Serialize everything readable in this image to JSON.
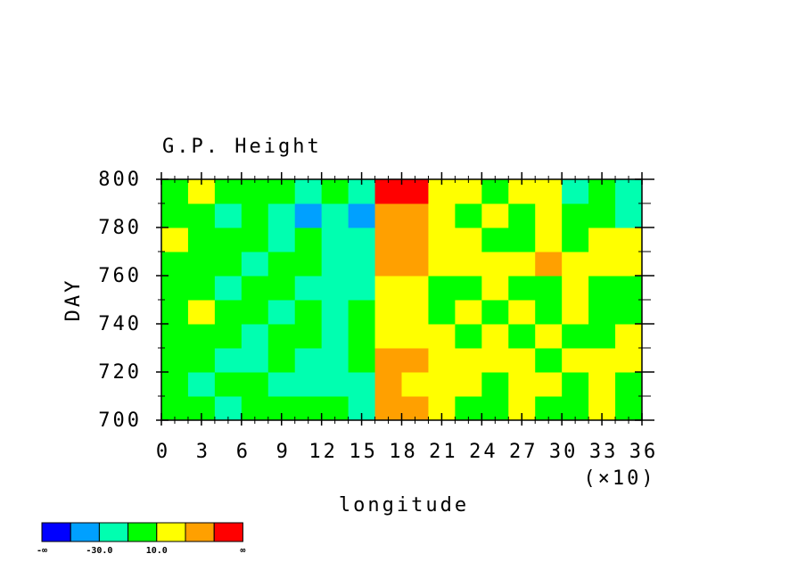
{
  "chart_data": {
    "type": "heatmap",
    "title": "G.P. Height",
    "x_label": "longitude",
    "x_scale_label": "(×10)",
    "y_label": "DAY",
    "xlim": [
      0,
      36
    ],
    "xticks": [
      0,
      3,
      6,
      9,
      12,
      15,
      18,
      21,
      24,
      27,
      30,
      33,
      36
    ],
    "ylim": [
      700,
      800
    ],
    "yticks": [
      700,
      720,
      740,
      760,
      780,
      800
    ],
    "x_edges": [
      0,
      2,
      4,
      6,
      8,
      10,
      12,
      14,
      16,
      18,
      20,
      22,
      24,
      26,
      28,
      30,
      32,
      34,
      36
    ],
    "y_edges": [
      700,
      710,
      720,
      730,
      740,
      750,
      760,
      770,
      780,
      790,
      800
    ],
    "z": [
      [
        0,
        0,
        -20,
        0,
        0,
        0,
        0,
        -20,
        40,
        40,
        20,
        0,
        0,
        20,
        0,
        0,
        20,
        0
      ],
      [
        0,
        -20,
        0,
        0,
        -20,
        -20,
        -20,
        -20,
        40,
        20,
        20,
        20,
        0,
        20,
        20,
        0,
        20,
        0
      ],
      [
        0,
        0,
        -20,
        -20,
        0,
        -20,
        -20,
        0,
        40,
        40,
        20,
        20,
        20,
        20,
        0,
        20,
        20,
        20
      ],
      [
        0,
        0,
        0,
        -20,
        0,
        0,
        -20,
        0,
        20,
        20,
        20,
        0,
        20,
        0,
        20,
        0,
        0,
        20
      ],
      [
        0,
        20,
        0,
        0,
        -20,
        0,
        -20,
        0,
        20,
        20,
        0,
        20,
        0,
        20,
        0,
        20,
        0,
        0
      ],
      [
        0,
        0,
        -20,
        0,
        0,
        -20,
        -20,
        -20,
        20,
        20,
        0,
        0,
        20,
        0,
        0,
        20,
        0,
        0
      ],
      [
        0,
        0,
        0,
        -20,
        0,
        0,
        -20,
        -20,
        40,
        40,
        20,
        20,
        20,
        20,
        40,
        20,
        20,
        20
      ],
      [
        20,
        0,
        0,
        0,
        -20,
        0,
        -20,
        -20,
        40,
        40,
        20,
        20,
        0,
        0,
        20,
        0,
        20,
        20
      ],
      [
        0,
        0,
        -20,
        0,
        -20,
        -40,
        -20,
        -40,
        40,
        40,
        20,
        0,
        20,
        0,
        20,
        0,
        0,
        -20
      ],
      [
        0,
        20,
        0,
        0,
        0,
        -20,
        0,
        -20,
        60,
        60,
        20,
        20,
        0,
        20,
        20,
        -20,
        0,
        -20
      ]
    ],
    "levels": [
      -50,
      -30,
      -10,
      10,
      30,
      50
    ],
    "colors": [
      "#0000ff",
      "#00a0ff",
      "#00ffb0",
      "#00ff00",
      "#ffff00",
      "#ffa000",
      "#ff0000"
    ],
    "colorbar_labels": [
      "-∞",
      null,
      "-30.0",
      null,
      "10.0",
      null,
      null,
      "∞"
    ]
  }
}
